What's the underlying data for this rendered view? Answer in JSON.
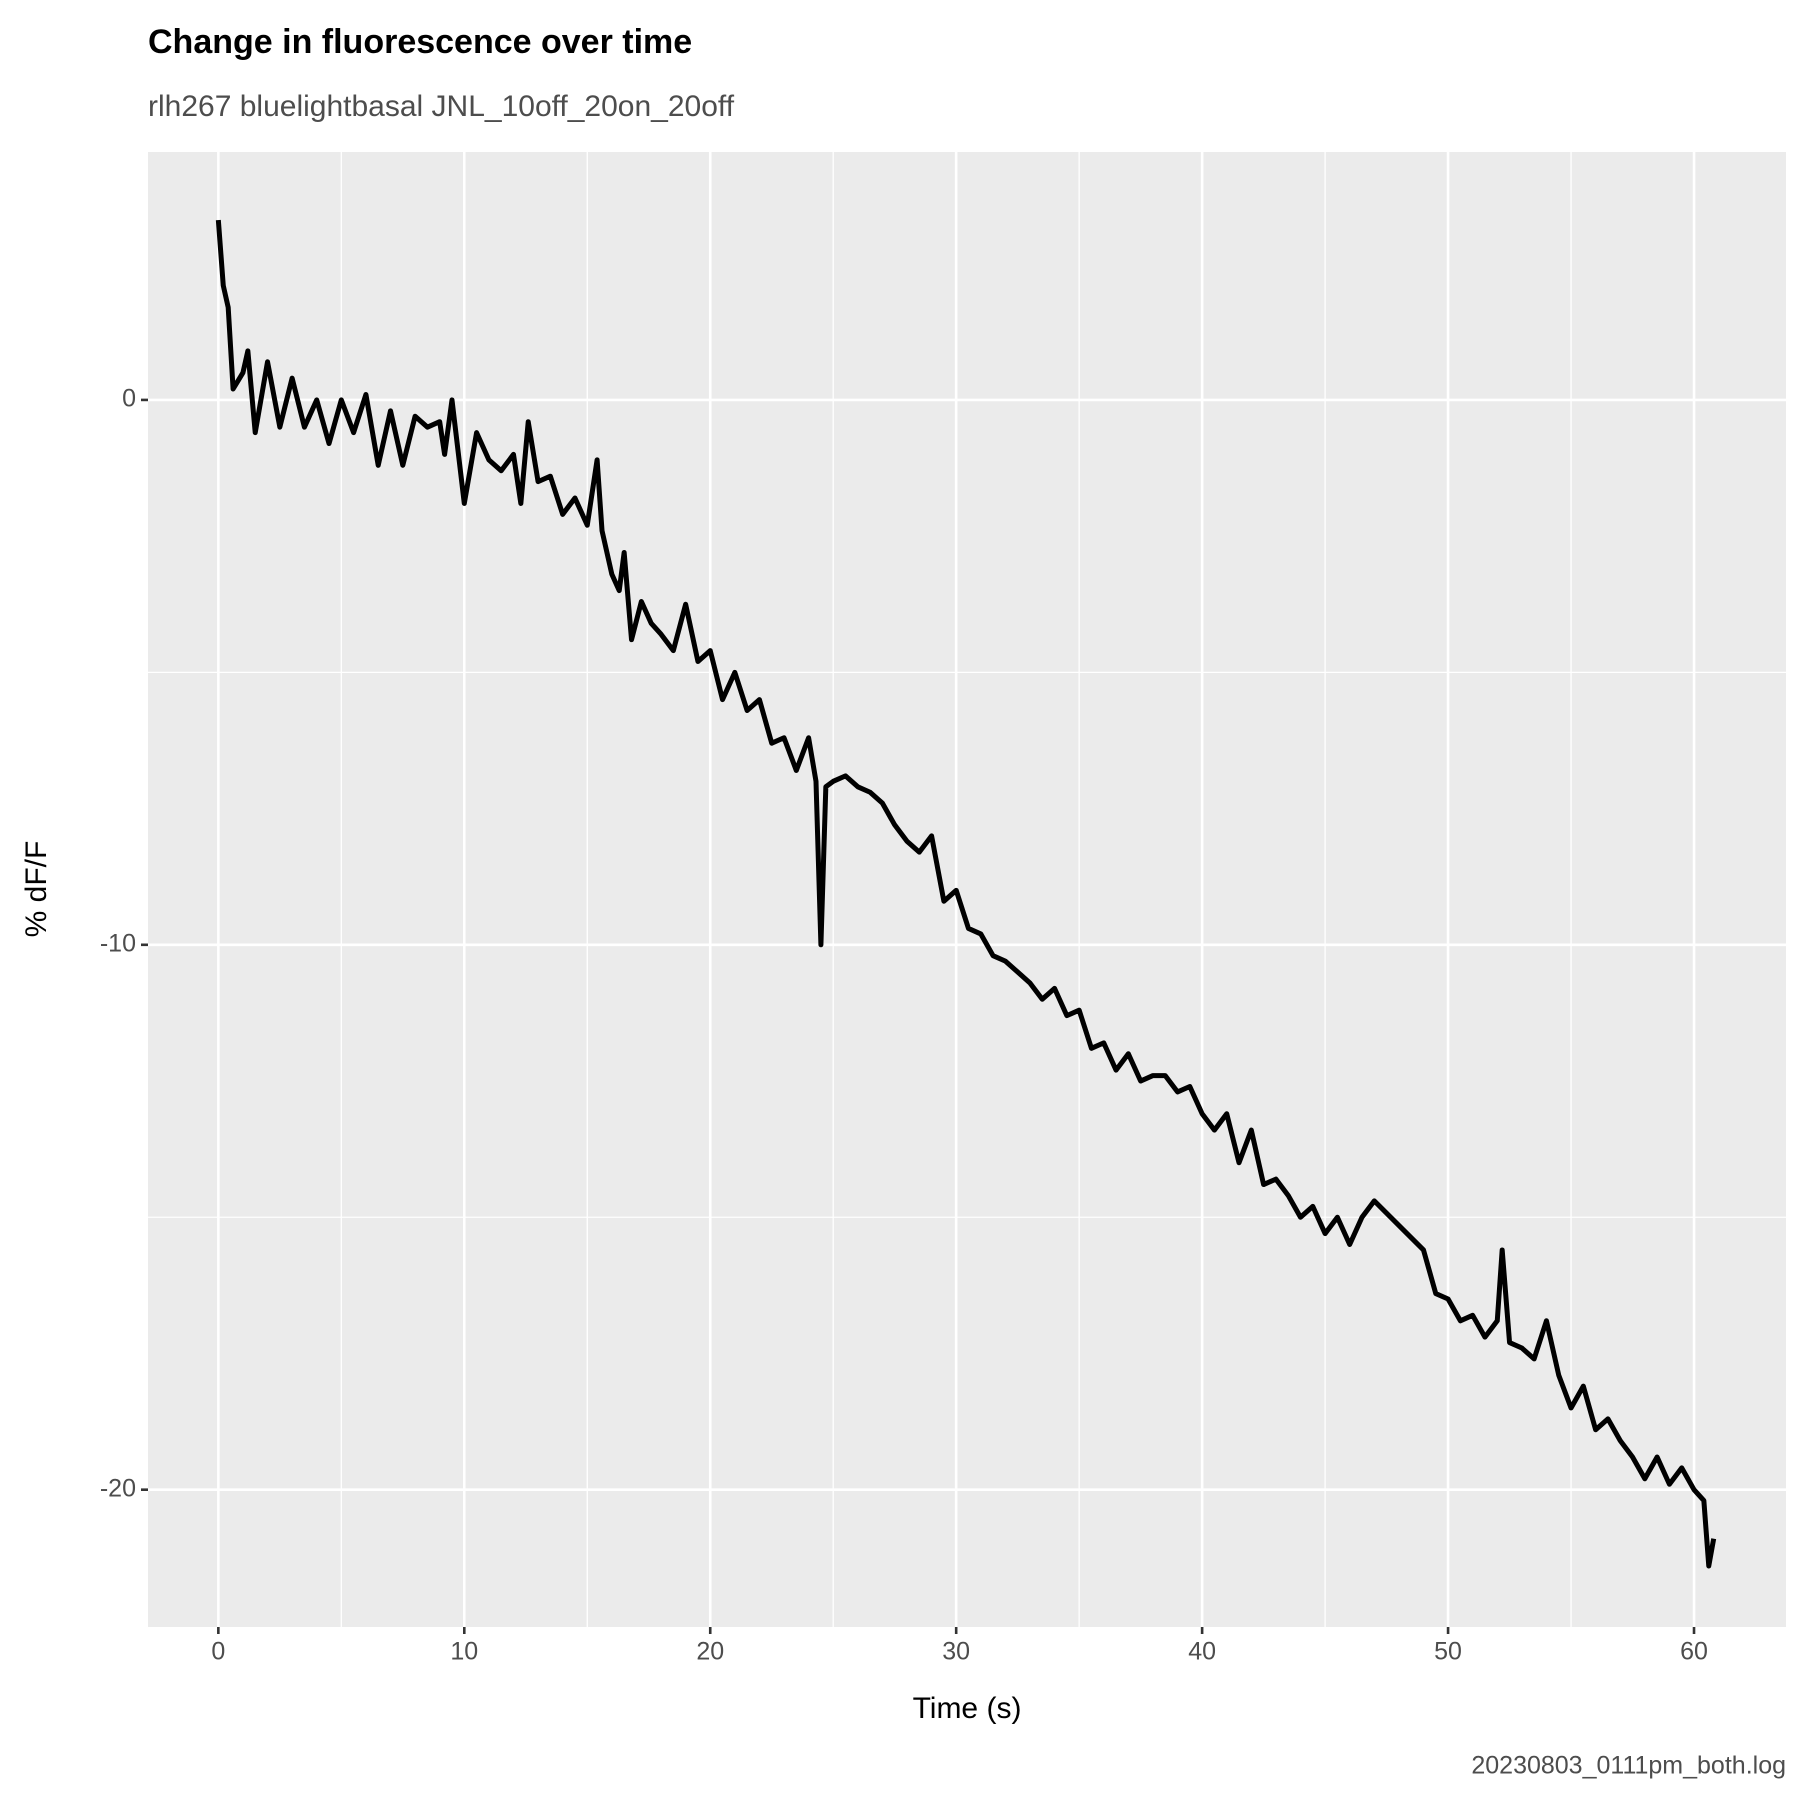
{
  "chart_data": {
    "type": "line",
    "title": "Change in fluorescence over time",
    "subtitle": "rlh267 bluelightbasal JNL_10off_20on_20off",
    "subtitle_color": "#8b4513",
    "caption": "20230803_0111pm_both.log",
    "x_label": "Time (s)",
    "y_label": "% dF/F",
    "color": "#000000",
    "grid": true,
    "xlim": [
      -2.86,
      63.74
    ],
    "ylim": [
      -22.52,
      4.55
    ],
    "xticks": [
      0,
      10,
      20,
      30,
      40,
      50,
      60
    ],
    "yticks": [
      -20,
      -10,
      0
    ],
    "x": [
      0,
      0.2,
      0.4,
      0.6,
      1,
      1.2,
      1.5,
      2,
      2.5,
      3,
      3.5,
      4,
      4.5,
      5,
      5.5,
      6,
      6.5,
      7,
      7.5,
      8,
      8.5,
      9,
      9.2,
      9.5,
      10,
      10.5,
      11,
      11.5,
      12,
      12.3,
      12.6,
      13,
      13.5,
      14,
      14.5,
      15,
      15.4,
      15.6,
      16,
      16.3,
      16.5,
      16.8,
      17.2,
      17.6,
      18,
      18.5,
      19,
      19.5,
      20,
      20.5,
      21,
      21.5,
      22,
      22.5,
      23,
      23.5,
      24,
      24.3,
      24.5,
      24.7,
      25,
      25.5,
      26,
      26.5,
      27,
      27.5,
      28,
      28.5,
      29,
      29.5,
      30,
      30.5,
      31,
      31.5,
      32,
      32.5,
      33,
      33.5,
      34,
      34.5,
      35,
      35.5,
      36,
      36.5,
      37,
      37.5,
      38,
      38.5,
      39,
      39.5,
      40,
      40.5,
      41,
      41.5,
      42,
      42.5,
      43,
      43.5,
      44,
      44.5,
      45,
      45.5,
      46,
      46.5,
      47,
      49,
      49.5,
      50,
      50.5,
      51,
      51.5,
      52,
      52.2,
      52.5,
      53,
      53.5,
      54,
      54.5,
      55,
      55.5,
      56,
      56.5,
      57,
      57.5,
      58,
      58.5,
      59,
      59.5,
      60,
      60.4,
      60.6,
      60.8
    ],
    "values": [
      3.3,
      2.1,
      1.7,
      0.2,
      0.5,
      0.9,
      -0.6,
      0.7,
      -0.5,
      0.4,
      -0.5,
      0,
      -0.8,
      0,
      -0.6,
      0.1,
      -1.2,
      -0.2,
      -1.2,
      -0.3,
      -0.5,
      -0.4,
      -1.0,
      0,
      -1.9,
      -0.6,
      -1.1,
      -1.3,
      -1.0,
      -1.9,
      -0.4,
      -1.5,
      -1.4,
      -2.1,
      -1.8,
      -2.3,
      -1.1,
      -2.4,
      -3.2,
      -3.5,
      -2.8,
      -4.4,
      -3.7,
      -4.1,
      -4.3,
      -4.6,
      -3.75,
      -4.8,
      -4.6,
      -5.5,
      -5.0,
      -5.7,
      -5.5,
      -6.3,
      -6.2,
      -6.8,
      -6.2,
      -7.0,
      -10.0,
      -7.1,
      -7.0,
      -6.9,
      -7.1,
      -7.2,
      -7.4,
      -7.8,
      -8.1,
      -8.3,
      -8.0,
      -9.2,
      -9.0,
      -9.7,
      -9.8,
      -10.2,
      -10.3,
      -10.5,
      -10.7,
      -11.0,
      -10.8,
      -11.3,
      -11.2,
      -11.9,
      -11.8,
      -12.3,
      -12.0,
      -12.5,
      -12.4,
      -12.4,
      -12.7,
      -12.6,
      -13.1,
      -13.4,
      -13.1,
      -14.0,
      -13.4,
      -14.4,
      -14.3,
      -14.6,
      -15.0,
      -14.8,
      -15.3,
      -15.0,
      -15.5,
      -15.0,
      -14.7,
      -15.6,
      -16.4,
      -16.5,
      -16.9,
      -16.8,
      -17.2,
      -16.9,
      -15.6,
      -17.3,
      -17.4,
      -17.6,
      -16.9,
      -17.9,
      -18.5,
      -18.1,
      -18.9,
      -18.7,
      -19.1,
      -19.4,
      -19.8,
      -19.4,
      -19.9,
      -19.6,
      -20.0,
      -20.2,
      -21.4,
      -20.9
    ]
  }
}
